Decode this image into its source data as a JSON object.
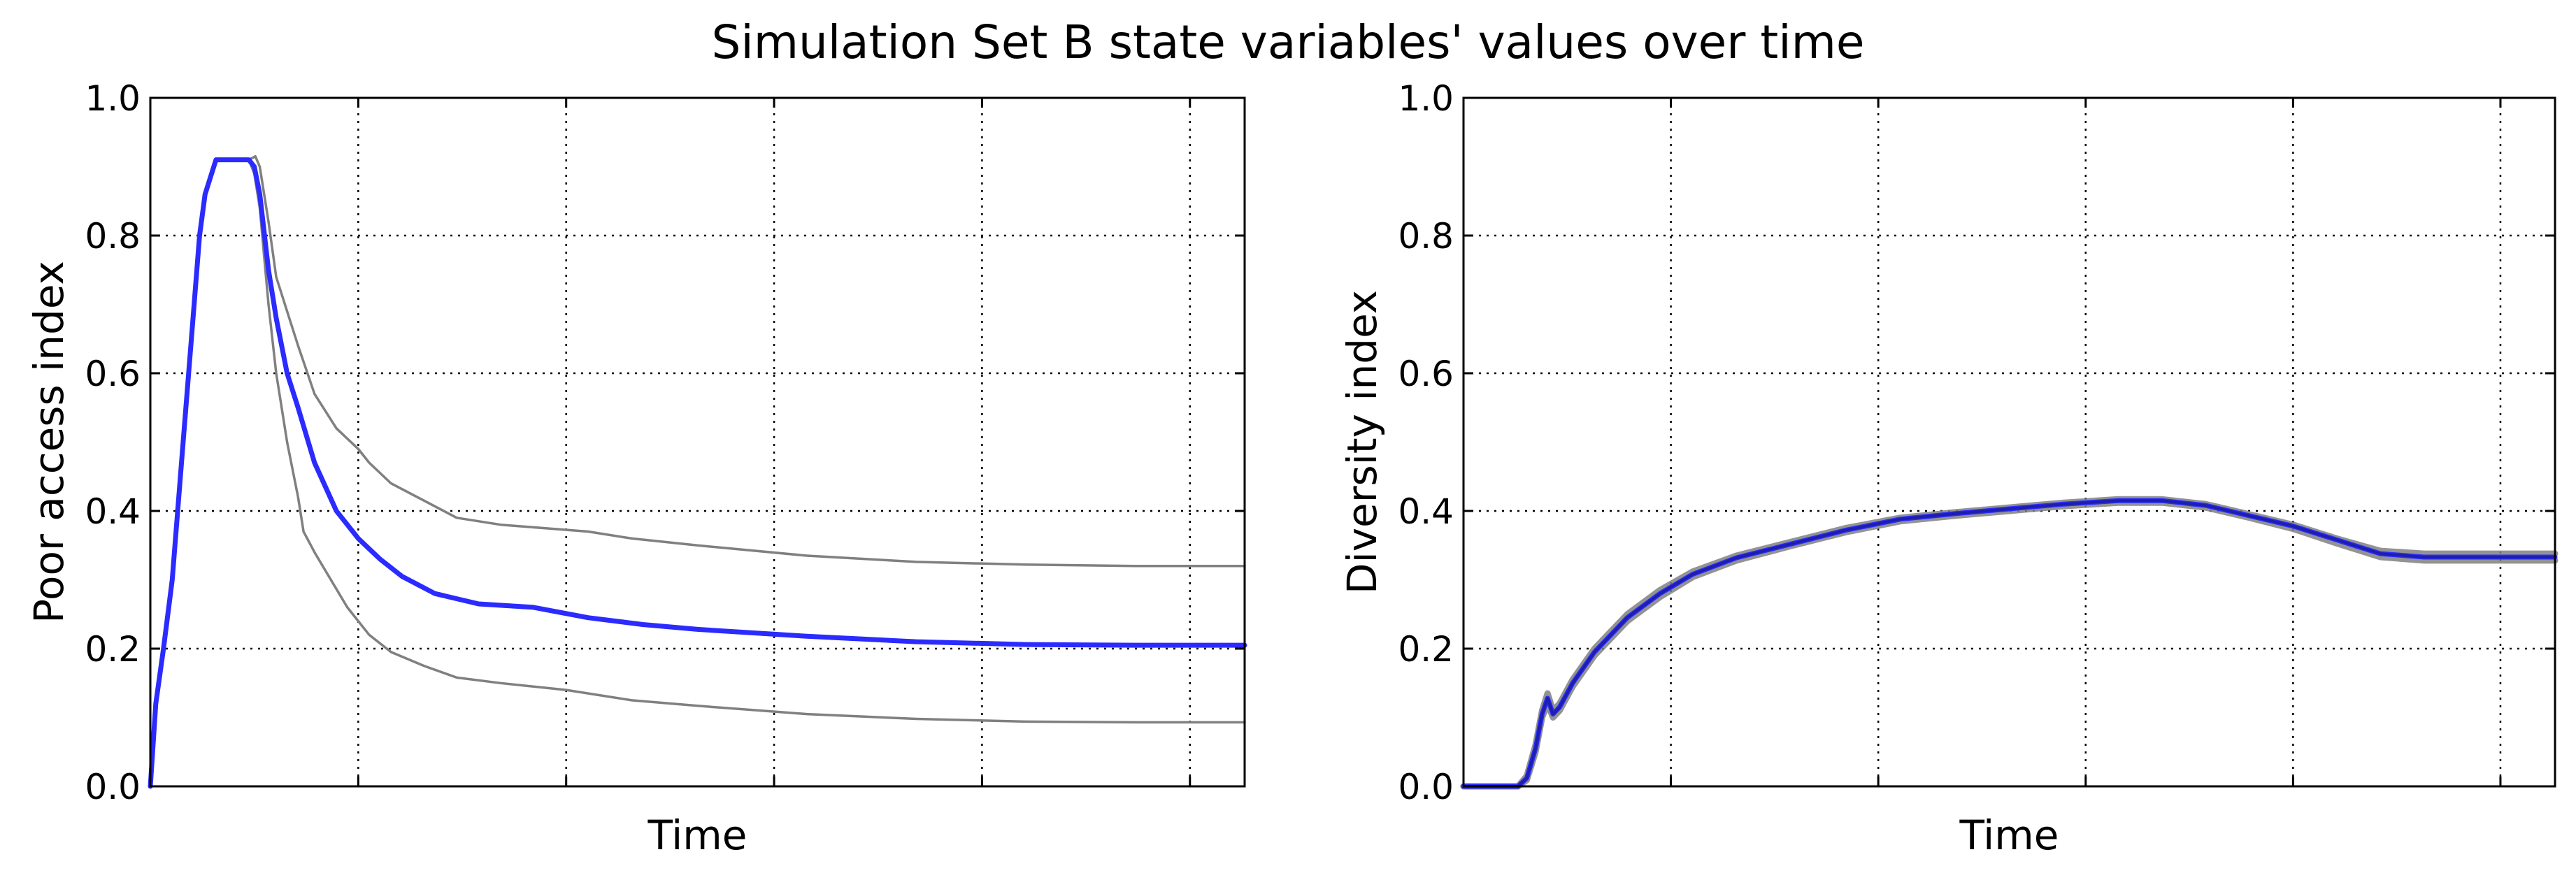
{
  "figure": {
    "title": "Simulation Set B state variables' values over time"
  },
  "chart_data": [
    {
      "type": "line",
      "title": "",
      "xlabel": "Time",
      "ylabel": "Poor access index",
      "xlim": [
        0,
        1
      ],
      "ylim": [
        0.0,
        1.0
      ],
      "xticks": [
        0.19,
        0.38,
        0.57,
        0.76,
        0.95
      ],
      "xtick_labels_shown": false,
      "yticks": [
        "0.0",
        "0.2",
        "0.4",
        "0.6",
        "0.8",
        "1.0"
      ],
      "grid": true,
      "series": [
        {
          "name": "upper bound",
          "color": "#808080",
          "values": [
            [
              0,
              0
            ],
            [
              0.005,
              0.12
            ],
            [
              0.012,
              0.2
            ],
            [
              0.02,
              0.3
            ],
            [
              0.03,
              0.5
            ],
            [
              0.038,
              0.66
            ],
            [
              0.045,
              0.8
            ],
            [
              0.05,
              0.86
            ],
            [
              0.056,
              0.89
            ],
            [
              0.06,
              0.91
            ],
            [
              0.08,
              0.91
            ],
            [
              0.09,
              0.91
            ],
            [
              0.096,
              0.915
            ],
            [
              0.1,
              0.9
            ],
            [
              0.108,
              0.82
            ],
            [
              0.115,
              0.74
            ],
            [
              0.125,
              0.69
            ],
            [
              0.135,
              0.64
            ],
            [
              0.15,
              0.57
            ],
            [
              0.17,
              0.52
            ],
            [
              0.19,
              0.49
            ],
            [
              0.2,
              0.47
            ],
            [
              0.22,
              0.44
            ],
            [
              0.25,
              0.415
            ],
            [
              0.28,
              0.39
            ],
            [
              0.32,
              0.38
            ],
            [
              0.36,
              0.375
            ],
            [
              0.4,
              0.37
            ],
            [
              0.44,
              0.36
            ],
            [
              0.5,
              0.35
            ],
            [
              0.6,
              0.335
            ],
            [
              0.7,
              0.326
            ],
            [
              0.8,
              0.322
            ],
            [
              0.9,
              0.32
            ],
            [
              1.0,
              0.32
            ]
          ]
        },
        {
          "name": "mean",
          "color": "#2b2bff",
          "values": [
            [
              0,
              0
            ],
            [
              0.005,
              0.12
            ],
            [
              0.012,
              0.2
            ],
            [
              0.02,
              0.3
            ],
            [
              0.03,
              0.5
            ],
            [
              0.038,
              0.66
            ],
            [
              0.045,
              0.8
            ],
            [
              0.05,
              0.86
            ],
            [
              0.056,
              0.89
            ],
            [
              0.06,
              0.91
            ],
            [
              0.08,
              0.91
            ],
            [
              0.09,
              0.91
            ],
            [
              0.095,
              0.9
            ],
            [
              0.1,
              0.86
            ],
            [
              0.108,
              0.75
            ],
            [
              0.115,
              0.68
            ],
            [
              0.125,
              0.6
            ],
            [
              0.135,
              0.55
            ],
            [
              0.15,
              0.47
            ],
            [
              0.17,
              0.4
            ],
            [
              0.19,
              0.36
            ],
            [
              0.21,
              0.33
            ],
            [
              0.23,
              0.305
            ],
            [
              0.26,
              0.28
            ],
            [
              0.3,
              0.265
            ],
            [
              0.35,
              0.26
            ],
            [
              0.4,
              0.245
            ],
            [
              0.45,
              0.235
            ],
            [
              0.5,
              0.228
            ],
            [
              0.6,
              0.218
            ],
            [
              0.7,
              0.21
            ],
            [
              0.8,
              0.206
            ],
            [
              0.9,
              0.205
            ],
            [
              1.0,
              0.205
            ]
          ]
        },
        {
          "name": "lower bound",
          "color": "#808080",
          "values": [
            [
              0,
              0
            ],
            [
              0.005,
              0.12
            ],
            [
              0.012,
              0.2
            ],
            [
              0.02,
              0.3
            ],
            [
              0.03,
              0.5
            ],
            [
              0.038,
              0.66
            ],
            [
              0.045,
              0.8
            ],
            [
              0.05,
              0.86
            ],
            [
              0.056,
              0.89
            ],
            [
              0.06,
              0.91
            ],
            [
              0.08,
              0.91
            ],
            [
              0.09,
              0.91
            ],
            [
              0.095,
              0.89
            ],
            [
              0.1,
              0.84
            ],
            [
              0.108,
              0.7
            ],
            [
              0.115,
              0.6
            ],
            [
              0.125,
              0.5
            ],
            [
              0.135,
              0.42
            ],
            [
              0.14,
              0.37
            ],
            [
              0.15,
              0.34
            ],
            [
              0.165,
              0.3
            ],
            [
              0.18,
              0.26
            ],
            [
              0.2,
              0.22
            ],
            [
              0.22,
              0.195
            ],
            [
              0.25,
              0.175
            ],
            [
              0.28,
              0.158
            ],
            [
              0.32,
              0.15
            ],
            [
              0.38,
              0.14
            ],
            [
              0.44,
              0.125
            ],
            [
              0.5,
              0.117
            ],
            [
              0.6,
              0.105
            ],
            [
              0.7,
              0.098
            ],
            [
              0.8,
              0.094
            ],
            [
              0.9,
              0.093
            ],
            [
              1.0,
              0.093
            ]
          ]
        }
      ]
    },
    {
      "type": "line",
      "title": "",
      "xlabel": "Time",
      "ylabel": "Diversity index",
      "xlim": [
        0,
        1
      ],
      "ylim": [
        0.0,
        1.0
      ],
      "xticks": [
        0.19,
        0.38,
        0.57,
        0.76,
        0.95
      ],
      "xtick_labels_shown": false,
      "yticks": [
        "0.0",
        "0.2",
        "0.4",
        "0.6",
        "0.8",
        "1.0"
      ],
      "grid": true,
      "series": [
        {
          "name": "upper bound",
          "color": "#808080",
          "values": [
            [
              0,
              0
            ],
            [
              0.05,
              0.0
            ],
            [
              0.058,
              0.015
            ],
            [
              0.066,
              0.06
            ],
            [
              0.072,
              0.11
            ],
            [
              0.077,
              0.135
            ],
            [
              0.082,
              0.11
            ],
            [
              0.088,
              0.12
            ],
            [
              0.1,
              0.155
            ],
            [
              0.12,
              0.2
            ],
            [
              0.15,
              0.25
            ],
            [
              0.18,
              0.285
            ],
            [
              0.21,
              0.312
            ],
            [
              0.25,
              0.335
            ],
            [
              0.3,
              0.355
            ],
            [
              0.35,
              0.375
            ],
            [
              0.4,
              0.39
            ],
            [
              0.45,
              0.398
            ],
            [
              0.5,
              0.405
            ],
            [
              0.55,
              0.412
            ],
            [
              0.6,
              0.417
            ],
            [
              0.64,
              0.417
            ],
            [
              0.68,
              0.41
            ],
            [
              0.72,
              0.395
            ],
            [
              0.76,
              0.38
            ],
            [
              0.8,
              0.36
            ],
            [
              0.84,
              0.342
            ],
            [
              0.88,
              0.338
            ],
            [
              0.92,
              0.338
            ],
            [
              1.0,
              0.338
            ]
          ]
        },
        {
          "name": "mean",
          "color": "#2b2bff",
          "values": [
            [
              0,
              0
            ],
            [
              0.05,
              0.0
            ],
            [
              0.058,
              0.012
            ],
            [
              0.066,
              0.055
            ],
            [
              0.072,
              0.105
            ],
            [
              0.077,
              0.128
            ],
            [
              0.082,
              0.105
            ],
            [
              0.088,
              0.115
            ],
            [
              0.1,
              0.15
            ],
            [
              0.12,
              0.195
            ],
            [
              0.15,
              0.245
            ],
            [
              0.18,
              0.28
            ],
            [
              0.21,
              0.308
            ],
            [
              0.25,
              0.332
            ],
            [
              0.3,
              0.352
            ],
            [
              0.35,
              0.372
            ],
            [
              0.4,
              0.388
            ],
            [
              0.45,
              0.396
            ],
            [
              0.5,
              0.403
            ],
            [
              0.55,
              0.41
            ],
            [
              0.6,
              0.415
            ],
            [
              0.64,
              0.415
            ],
            [
              0.68,
              0.408
            ],
            [
              0.72,
              0.393
            ],
            [
              0.76,
              0.378
            ],
            [
              0.8,
              0.358
            ],
            [
              0.84,
              0.338
            ],
            [
              0.88,
              0.333
            ],
            [
              0.92,
              0.333
            ],
            [
              1.0,
              0.333
            ]
          ]
        },
        {
          "name": "lower bound",
          "color": "#808080",
          "values": [
            [
              0,
              0
            ],
            [
              0.05,
              0.0
            ],
            [
              0.058,
              0.009
            ],
            [
              0.066,
              0.05
            ],
            [
              0.072,
              0.1
            ],
            [
              0.077,
              0.12
            ],
            [
              0.082,
              0.1
            ],
            [
              0.088,
              0.11
            ],
            [
              0.1,
              0.145
            ],
            [
              0.12,
              0.19
            ],
            [
              0.15,
              0.24
            ],
            [
              0.18,
              0.275
            ],
            [
              0.21,
              0.304
            ],
            [
              0.25,
              0.328
            ],
            [
              0.3,
              0.349
            ],
            [
              0.35,
              0.369
            ],
            [
              0.4,
              0.385
            ],
            [
              0.45,
              0.393
            ],
            [
              0.5,
              0.4
            ],
            [
              0.55,
              0.407
            ],
            [
              0.6,
              0.412
            ],
            [
              0.64,
              0.412
            ],
            [
              0.68,
              0.405
            ],
            [
              0.72,
              0.39
            ],
            [
              0.76,
              0.374
            ],
            [
              0.8,
              0.353
            ],
            [
              0.84,
              0.333
            ],
            [
              0.88,
              0.328
            ],
            [
              0.92,
              0.328
            ],
            [
              1.0,
              0.328
            ]
          ]
        }
      ]
    }
  ]
}
